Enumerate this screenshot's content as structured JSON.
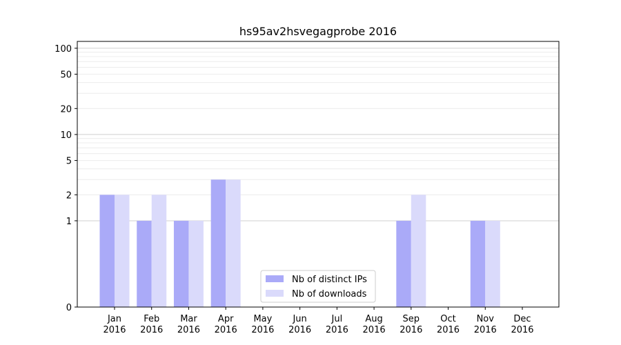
{
  "chart_data": {
    "type": "bar",
    "title": "hs95av2hsvegagprobe 2016",
    "y_scale": "symlog",
    "yticks": [
      "0",
      "1",
      "2",
      "5",
      "10",
      "20",
      "50",
      "100"
    ],
    "ylim": [
      0,
      120
    ],
    "categories": [
      "Jan\n2016",
      "Feb\n2016",
      "Mar\n2016",
      "Apr\n2016",
      "May\n2016",
      "Jun\n2016",
      "Jul\n2016",
      "Aug\n2016",
      "Sep\n2016",
      "Oct\n2016",
      "Nov\n2016",
      "Dec\n2016"
    ],
    "series": [
      {
        "name": "Nb of distinct IPs",
        "color": "#aaaaf8",
        "values": [
          2,
          1,
          1,
          3,
          0,
          0,
          0,
          0,
          1,
          0,
          1,
          0
        ]
      },
      {
        "name": "Nb of downloads",
        "color": "#dadafb",
        "values": [
          2,
          2,
          1,
          3,
          0,
          0,
          0,
          0,
          2,
          0,
          1,
          0
        ]
      }
    ],
    "grid": true,
    "legend_position": "bottom-center"
  }
}
